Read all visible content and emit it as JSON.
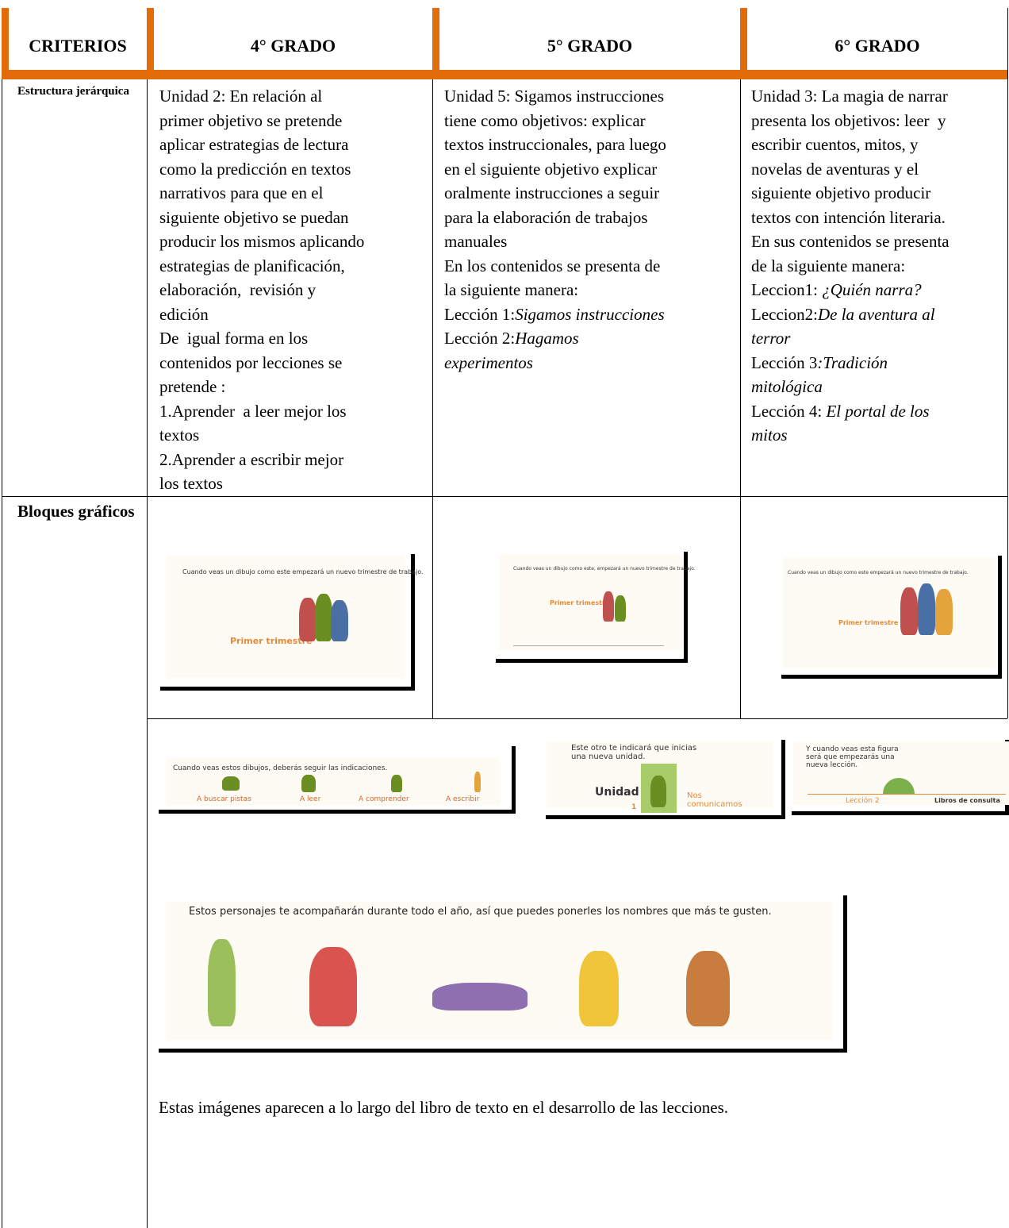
{
  "table": {
    "header": [
      "CRITERIOS",
      "4° GRADO",
      "5° GRADO",
      "6° GRADO"
    ],
    "rows": [
      {
        "criterion": "Estructura jerárquica",
        "cells": [
          [
            {
              "text": "Unidad 2: En relación al"
            },
            {
              "text": "primer objetivo se pretende"
            },
            {
              "text": "aplicar estrategias de lectura"
            },
            {
              "text": "como la predicción en textos"
            },
            {
              "text": "narrativos para que en el"
            },
            {
              "text": "siguiente objetivo se puedan"
            },
            {
              "text": "producir los mismos aplicando"
            },
            {
              "text": "estrategias de planificación,"
            },
            {
              "text": "elaboración,  revisión y"
            },
            {
              "text": "edición"
            },
            {
              "text": "De  igual forma en los"
            },
            {
              "text": "contenidos por lecciones se"
            },
            {
              "text": "pretende :"
            },
            {
              "text": "1.Aprender  a leer mejor los"
            },
            {
              "text": "textos"
            },
            {
              "text": "2.Aprender a escribir mejor"
            },
            {
              "text": "los textos"
            }
          ],
          [
            {
              "text": "Unidad 5: Sigamos instrucciones"
            },
            {
              "text": "tiene como objetivos: explicar"
            },
            {
              "text": "textos instruccionales, para luego"
            },
            {
              "text": "en el siguiente objetivo explicar"
            },
            {
              "text": "oralmente instrucciones a seguir"
            },
            {
              "text": "para la elaboración de trabajos"
            },
            {
              "text": "manuales"
            },
            {
              "text": "En los contenidos se presenta de"
            },
            {
              "text": "la siguiente manera:"
            },
            {
              "text": "Lección 1:",
              "italic": "Sigamos instrucciones"
            },
            {
              "text": "Lección 2:",
              "italic": "Hagamos"
            },
            {
              "italic": "experimentos"
            }
          ],
          [
            {
              "text": "Unidad 3: La magia de narrar"
            },
            {
              "text": "presenta los objetivos: leer  y"
            },
            {
              "text": "escribir cuentos, mitos, y"
            },
            {
              "text": "novelas de aventuras y el"
            },
            {
              "text": "siguiente objetivo producir"
            },
            {
              "text": "textos con intención literaria."
            },
            {
              "text": "En sus contenidos se presenta"
            },
            {
              "text": "de la siguiente manera:"
            },
            {
              "text": "Leccion1: ",
              "italic": "¿Quién narra?"
            },
            {
              "text": "Leccion2:",
              "italic": "De la aventura al"
            },
            {
              "italic": "terror"
            },
            {
              "text": "Lección 3",
              "italic": ":Tradición"
            },
            {
              "italic": "mitológica"
            },
            {
              "text": "Lección 4: ",
              "italic": "El portal de los"
            },
            {
              "italic": "mitos"
            }
          ]
        ]
      },
      {
        "criterion": "Bloques gráficos",
        "images": [
          {
            "caption": "Cuando veas un dibujo como este empezará un nuevo trimestre de trabajo.",
            "label": "Primer trimestre"
          },
          {
            "caption": "Cuando veas un dibujo como este, empezará un nuevo trimestre de trabajo.",
            "label": "Primer trimestre"
          },
          {
            "caption": "Cuando veas un dibujo como este empezará un nuevo trimestre de trabajo.",
            "label": "Primer trimestre"
          },
          {
            "caption": "Cuando veas estos dibujos, deberás seguir las indicaciones.",
            "labels": [
              "A buscar pistas",
              "A leer",
              "A comprender",
              "A escribir"
            ]
          },
          {
            "caption": "Este otro te indicará que inicias una nueva unidad.",
            "unit": "Unidad",
            "number": "1",
            "title": "Nos comunicamos"
          },
          {
            "caption": "Y cuando veas esta figura será que empezarás una nueva lección.",
            "lesson": "Lección 2",
            "title": "Libros de consulta"
          },
          {
            "caption": "Estos personajes te acompañarán durante todo el año, así que puedes ponerles los nombres que más te gusten."
          }
        ],
        "note": "Estas imágenes aparecen a lo largo del libro de texto en el desarrollo de las lecciones."
      }
    ]
  }
}
